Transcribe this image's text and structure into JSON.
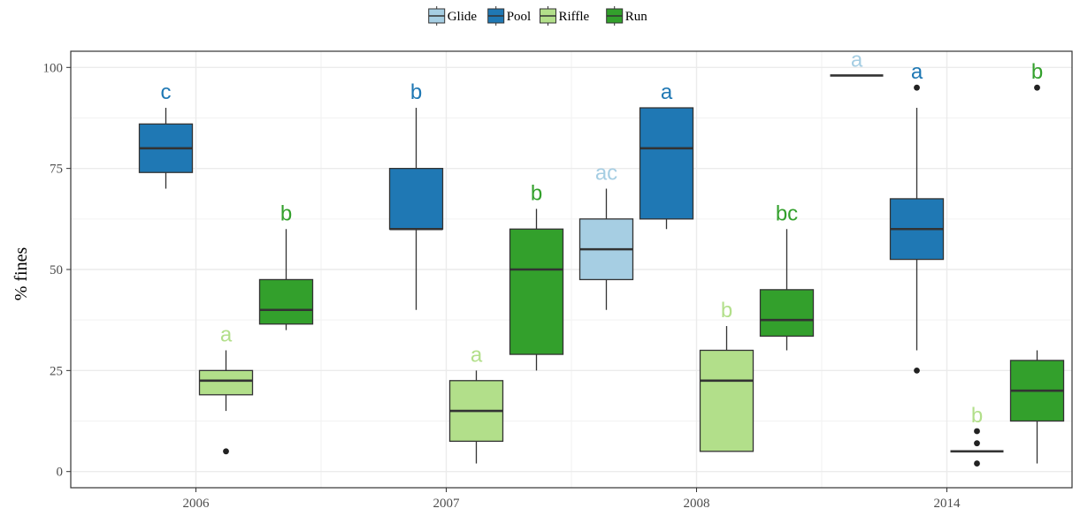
{
  "chart_data": {
    "type": "boxplot",
    "ylabel": "% fines",
    "xlabel": "",
    "ylim": [
      -4,
      104
    ],
    "yticks": [
      0,
      25,
      50,
      75,
      100
    ],
    "categories": [
      "2006",
      "2007",
      "2008",
      "2014"
    ],
    "grid": true,
    "legend_position": "top",
    "series": [
      {
        "name": "Glide",
        "color": "#a6cee3"
      },
      {
        "name": "Pool",
        "color": "#1f78b4"
      },
      {
        "name": "Riffle",
        "color": "#b2df8a"
      },
      {
        "name": "Run",
        "color": "#33a02c"
      }
    ],
    "boxes": [
      {
        "category": "2006",
        "series": "Pool",
        "whisker_low": 70,
        "q1": 74,
        "median": 80,
        "q3": 86,
        "whisker_high": 90,
        "outliers": [],
        "label": "c"
      },
      {
        "category": "2006",
        "series": "Riffle",
        "whisker_low": 15,
        "q1": 19,
        "median": 22.5,
        "q3": 25,
        "whisker_high": 30,
        "outliers": [
          5
        ],
        "label": "a"
      },
      {
        "category": "2006",
        "series": "Run",
        "whisker_low": 35,
        "q1": 36.5,
        "median": 40,
        "q3": 47.5,
        "whisker_high": 60,
        "outliers": [],
        "label": "b"
      },
      {
        "category": "2007",
        "series": "Pool",
        "whisker_low": 40,
        "q1": 60,
        "median": 60,
        "q3": 75,
        "whisker_high": 90,
        "outliers": [],
        "label": "b"
      },
      {
        "category": "2007",
        "series": "Riffle",
        "whisker_low": 2,
        "q1": 7.5,
        "median": 15,
        "q3": 22.5,
        "whisker_high": 25,
        "outliers": [],
        "label": "a"
      },
      {
        "category": "2007",
        "series": "Run",
        "whisker_low": 25,
        "q1": 29,
        "median": 50,
        "q3": 60,
        "whisker_high": 65,
        "outliers": [],
        "label": "b"
      },
      {
        "category": "2008",
        "series": "Glide",
        "whisker_low": 40,
        "q1": 47.5,
        "median": 55,
        "q3": 62.5,
        "whisker_high": 70,
        "outliers": [],
        "label": "ac"
      },
      {
        "category": "2008",
        "series": "Pool",
        "whisker_low": 60,
        "q1": 62.5,
        "median": 80,
        "q3": 90,
        "whisker_high": 90,
        "outliers": [],
        "label": "a"
      },
      {
        "category": "2008",
        "series": "Riffle",
        "whisker_low": 5,
        "q1": 5,
        "median": 22.5,
        "q3": 30,
        "whisker_high": 36,
        "outliers": [],
        "label": "b"
      },
      {
        "category": "2008",
        "series": "Run",
        "whisker_low": 30,
        "q1": 33.5,
        "median": 37.5,
        "q3": 45,
        "whisker_high": 60,
        "outliers": [],
        "label": "bc"
      },
      {
        "category": "2014",
        "series": "Glide",
        "whisker_low": 98,
        "q1": 98,
        "median": 98,
        "q3": 98,
        "whisker_high": 98,
        "outliers": [],
        "label": "a"
      },
      {
        "category": "2014",
        "series": "Pool",
        "whisker_low": 30,
        "q1": 52.5,
        "median": 60,
        "q3": 67.5,
        "whisker_high": 90,
        "outliers": [
          25,
          95
        ],
        "label": "a"
      },
      {
        "category": "2014",
        "series": "Riffle",
        "whisker_low": 5,
        "q1": 5,
        "median": 5,
        "q3": 5,
        "whisker_high": 5,
        "outliers": [
          2,
          7,
          10
        ],
        "label": "b"
      },
      {
        "category": "2014",
        "series": "Run",
        "whisker_low": 2,
        "q1": 12.5,
        "median": 20,
        "q3": 27.5,
        "whisker_high": 30,
        "outliers": [
          95
        ],
        "label": "b"
      }
    ]
  }
}
